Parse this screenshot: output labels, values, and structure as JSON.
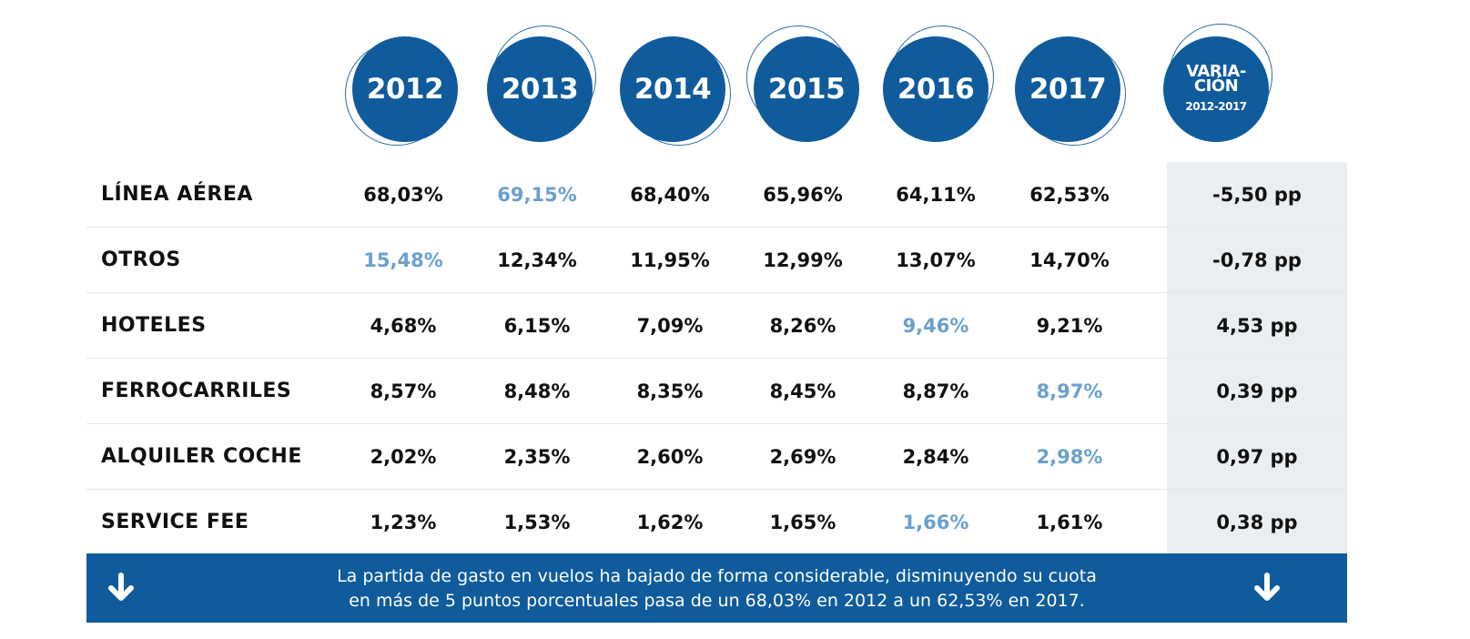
{
  "columns": [
    "2012",
    "2013",
    "2014",
    "2015",
    "2016",
    "2017"
  ],
  "variation_header": {
    "line1": "VARIA-",
    "line2": "CIÓN",
    "line3": "2012-2017"
  },
  "rows": [
    {
      "label": "LÍNEA AÉREA",
      "values": [
        "68,03%",
        "69,15%",
        "68,40%",
        "65,96%",
        "64,11%",
        "62,53%"
      ],
      "highlight": 1,
      "variation": "-5,50 pp"
    },
    {
      "label": "OTROS",
      "values": [
        "15,48%",
        "12,34%",
        "11,95%",
        "12,99%",
        "13,07%",
        "14,70%"
      ],
      "highlight": 0,
      "variation": "-0,78 pp"
    },
    {
      "label": "HOTELES",
      "values": [
        "4,68%",
        "6,15%",
        "7,09%",
        "8,26%",
        "9,46%",
        "9,21%"
      ],
      "highlight": 4,
      "variation": "4,53 pp"
    },
    {
      "label": "FERROCARRILES",
      "values": [
        "8,57%",
        "8,48%",
        "8,35%",
        "8,45%",
        "8,87%",
        "8,97%"
      ],
      "highlight": 5,
      "variation": "0,39 pp"
    },
    {
      "label": "ALQUILER COCHE",
      "values": [
        "2,02%",
        "2,35%",
        "2,60%",
        "2,69%",
        "2,84%",
        "2,98%"
      ],
      "highlight": 5,
      "variation": "0,97 pp"
    },
    {
      "label": "SERVICE FEE",
      "values": [
        "1,23%",
        "1,53%",
        "1,62%",
        "1,65%",
        "1,66%",
        "1,61%"
      ],
      "highlight": 4,
      "variation": "0,38 pp"
    }
  ],
  "footer": {
    "line1": "La partida de gasto en vuelos ha bajado de forma considerable, disminuyendo su cuota",
    "line2": "en más de 5 puntos porcentuales pasa de un 68,03% en 2012 a un 62,53% en 2017.",
    "icon": "arrow-down-icon"
  },
  "colors": {
    "brand": "#0f5b9c",
    "highlight": "#6aa0d0",
    "variation_bg": "#ebeef1"
  },
  "chart_data": {
    "type": "table",
    "columns": [
      "2012",
      "2013",
      "2014",
      "2015",
      "2016",
      "2017",
      "VARIACIÓN 2012-2017"
    ],
    "rows": [
      [
        "LÍNEA AÉREA",
        "68,03%",
        "69,15%",
        "68,40%",
        "65,96%",
        "64,11%",
        "62,53%",
        "-5,50 pp"
      ],
      [
        "OTROS",
        "15,48%",
        "12,34%",
        "11,95%",
        "12,99%",
        "13,07%",
        "14,70%",
        "-0,78 pp"
      ],
      [
        "HOTELES",
        "4,68%",
        "6,15%",
        "7,09%",
        "8,26%",
        "9,46%",
        "9,21%",
        "4,53 pp"
      ],
      [
        "FERROCARRILES",
        "8,57%",
        "8,48%",
        "8,35%",
        "8,45%",
        "8,87%",
        "8,97%",
        "0,39 pp"
      ],
      [
        "ALQUILER COCHE",
        "2,02%",
        "2,35%",
        "2,60%",
        "2,69%",
        "2,84%",
        "2,98%",
        "0,97 pp"
      ],
      [
        "SERVICE FEE",
        "1,23%",
        "1,53%",
        "1,62%",
        "1,65%",
        "1,66%",
        "1,61%",
        "0,38 pp"
      ]
    ]
  }
}
